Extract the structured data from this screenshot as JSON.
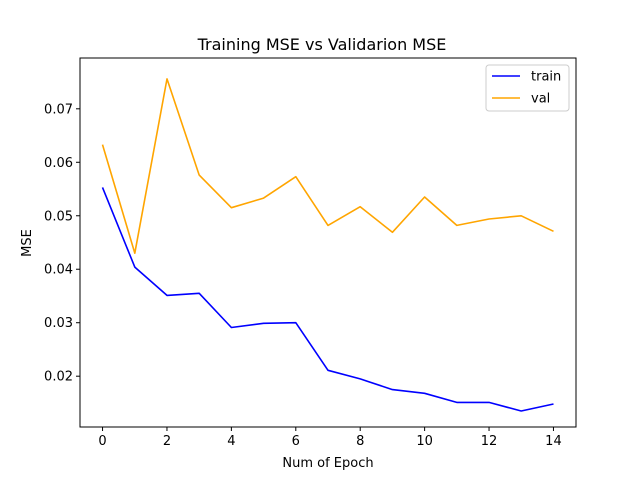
{
  "chart_data": {
    "type": "line",
    "title": "Training MSE vs Validarion MSE",
    "xlabel": "Num of Epoch",
    "ylabel": "MSE",
    "x": [
      0,
      1,
      2,
      3,
      4,
      5,
      6,
      7,
      8,
      9,
      10,
      11,
      12,
      13,
      14
    ],
    "xticks": [
      0,
      2,
      4,
      6,
      8,
      10,
      12,
      14
    ],
    "yticks": [
      0.02,
      0.03,
      0.04,
      0.05,
      0.06,
      0.07
    ],
    "xlim": [
      -0.7,
      14.7
    ],
    "ylim": [
      0.0105,
      0.0795
    ],
    "grid": false,
    "legend_position": "top-right",
    "series": [
      {
        "name": "train",
        "color": "#0000ff",
        "values": [
          0.0553,
          0.0404,
          0.0351,
          0.0355,
          0.0291,
          0.0299,
          0.03,
          0.0211,
          0.0195,
          0.0175,
          0.0168,
          0.0151,
          0.0151,
          0.0135,
          0.0148
        ]
      },
      {
        "name": "val",
        "color": "#ffa500",
        "values": [
          0.0633,
          0.043,
          0.0756,
          0.0576,
          0.0515,
          0.0533,
          0.0573,
          0.0482,
          0.0517,
          0.0469,
          0.0535,
          0.0482,
          0.0494,
          0.05,
          0.0471
        ]
      }
    ]
  }
}
